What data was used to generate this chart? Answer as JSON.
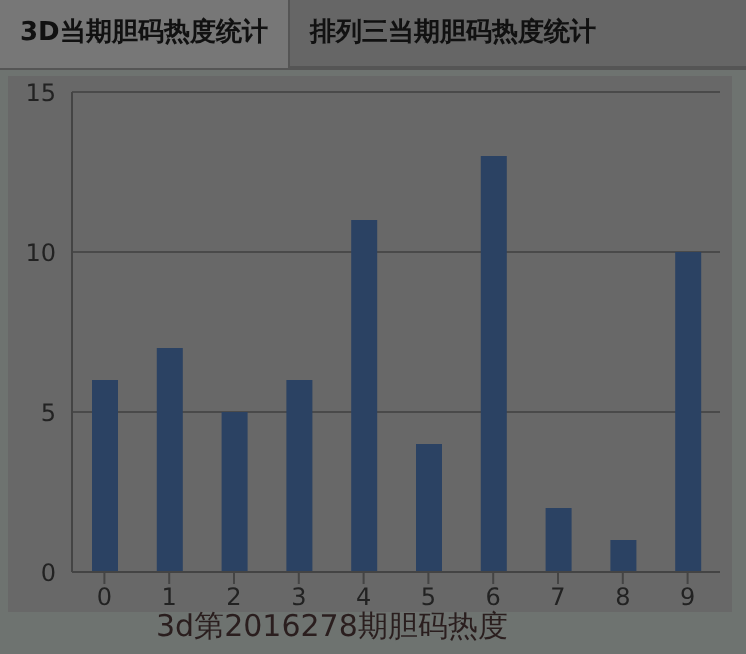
{
  "chart_data": {
    "type": "bar",
    "title": "3D当期胆码热度统计",
    "subtitle": "排列三当期胆码热度统计",
    "categories": [
      "0",
      "1",
      "2",
      "3",
      "4",
      "5",
      "6",
      "7",
      "8",
      "9"
    ],
    "values": [
      6,
      7,
      5,
      6,
      11,
      4,
      13,
      2,
      1,
      10
    ],
    "color": "#2b4263",
    "ylim": [
      0,
      15
    ],
    "yticks": [
      0,
      5,
      10,
      15
    ],
    "grid": "y",
    "annotations": [
      "3d第2016278期胆码热度"
    ]
  }
}
